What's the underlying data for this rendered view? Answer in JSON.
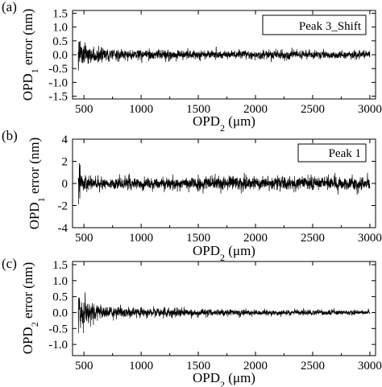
{
  "chart_data": [
    {
      "type": "line",
      "panel_label": "(a)",
      "legend": "Peak 3_Shift",
      "legend_position": "top-right",
      "xlabel": {
        "main": "OPD",
        "sub": "2",
        "unit": " (μm)"
      },
      "ylabel": {
        "main": "OPD",
        "sub": "1",
        "unit": " error (nm)"
      },
      "xlim": [
        400,
        3050
      ],
      "ylim": [
        -1.6,
        1.6
      ],
      "xticks": [
        500,
        1000,
        1500,
        2000,
        2500,
        3000
      ],
      "xtick_labels": [
        "500",
        "1000",
        "1500",
        "2000",
        "2500",
        "3000"
      ],
      "yticks": [
        1.5,
        1.0,
        0.5,
        0.0,
        -0.5,
        -1.0,
        -1.5
      ],
      "ytick_labels": [
        "1.5",
        "1.0",
        "0.5",
        "0.0",
        "-0.5",
        "-1.0",
        "-1.5"
      ],
      "series": [
        {
          "x_range": [
            450,
            3000
          ],
          "envelope": [
            {
              "x": 455,
              "amp": 1.4
            },
            {
              "x": 500,
              "amp": 0.95
            },
            {
              "x": 560,
              "amp": 0.6
            },
            {
              "x": 800,
              "amp": 0.45
            },
            {
              "x": 1500,
              "amp": 0.35
            },
            {
              "x": 3000,
              "amp": 0.3
            }
          ]
        }
      ],
      "color": "#000000"
    },
    {
      "type": "line",
      "panel_label": "(b)",
      "legend": "Peak 1",
      "legend_position": "top-right",
      "xlabel": {
        "main": "OPD",
        "sub": "2",
        "unit": " (μm)"
      },
      "ylabel": {
        "main": "OPD",
        "sub": "1",
        "unit": " error (nm)"
      },
      "xlim": [
        400,
        3050
      ],
      "ylim": [
        -4,
        4
      ],
      "xticks": [
        500,
        1000,
        1500,
        2000,
        2500,
        3000
      ],
      "xtick_labels": [
        "500",
        "1000",
        "1500",
        "2000",
        "2500",
        "3000"
      ],
      "yticks": [
        4,
        2,
        0,
        -2,
        -4
      ],
      "ytick_labels": [
        "4",
        "2",
        "0",
        "-2",
        "-4"
      ],
      "series": [
        {
          "x_range": [
            450,
            3000
          ],
          "envelope": [
            {
              "x": 455,
              "amp": 3.5
            },
            {
              "x": 480,
              "amp": 2.0
            },
            {
              "x": 530,
              "amp": 1.2
            },
            {
              "x": 1000,
              "amp": 1.2
            },
            {
              "x": 2000,
              "amp": 1.4
            },
            {
              "x": 3000,
              "amp": 1.3
            }
          ]
        }
      ],
      "color": "#000000"
    },
    {
      "type": "line",
      "panel_label": "(c)",
      "legend": "",
      "xlabel": {
        "main": "OPD",
        "sub": "2",
        "unit": " (μm)"
      },
      "ylabel": {
        "main": "OPD",
        "sub": "2",
        "unit": " error (nm)"
      },
      "xlim": [
        400,
        3050
      ],
      "ylim": [
        -1.35,
        1.6
      ],
      "xticks": [
        500,
        1000,
        1500,
        2000,
        2500,
        3000
      ],
      "xtick_labels": [
        "500",
        "1000",
        "1500",
        "2000",
        "2500",
        "3000"
      ],
      "yticks": [
        1.5,
        1.0,
        0.5,
        0.0,
        -0.5,
        -1.0
      ],
      "ytick_labels": [
        "1.5",
        "1.0",
        "0.5",
        "0.0",
        "-0.5",
        "-1.0"
      ],
      "series": [
        {
          "x_range": [
            450,
            3000
          ],
          "envelope": [
            {
              "x": 455,
              "amp": 1.3
            },
            {
              "x": 520,
              "amp": 0.75
            },
            {
              "x": 700,
              "amp": 0.4
            },
            {
              "x": 1200,
              "amp": 0.28
            },
            {
              "x": 2000,
              "amp": 0.2
            },
            {
              "x": 3000,
              "amp": 0.15
            }
          ]
        }
      ],
      "color": "#000000"
    }
  ]
}
